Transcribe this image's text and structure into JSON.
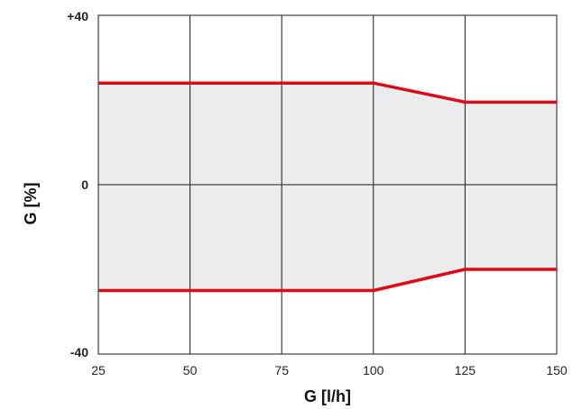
{
  "chart_data": {
    "type": "area",
    "title": "",
    "xlabel": "G [l/h]",
    "ylabel": "G [%]",
    "xlim": [
      25,
      150
    ],
    "ylim": [
      -40,
      40
    ],
    "x_ticks": [
      "25",
      "50",
      "75",
      "100",
      "125",
      "150"
    ],
    "y_ticks": [
      "+40",
      "0",
      "-40"
    ],
    "grid": true,
    "series": [
      {
        "role": "upper",
        "x": [
          25,
          50,
          75,
          100,
          125,
          150
        ],
        "values": [
          24,
          24,
          24,
          24,
          19.5,
          19.5
        ]
      },
      {
        "role": "lower",
        "x": [
          25,
          50,
          75,
          100,
          125,
          150
        ],
        "values": [
          -25,
          -25,
          -25,
          -25,
          -20,
          -20
        ]
      }
    ],
    "colors": {
      "line": "#dd0b16",
      "band_fill": "#ececec",
      "grid": "#1a1a1a"
    }
  }
}
